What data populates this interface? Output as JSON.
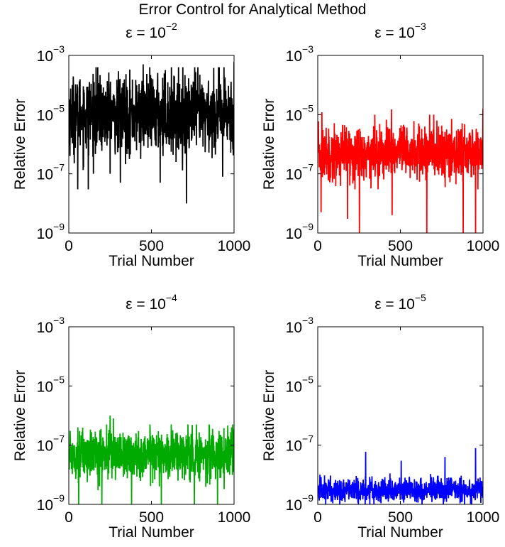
{
  "figure": {
    "title": "Error Control for Analytical Method"
  },
  "chart_data": [
    {
      "type": "line",
      "title_prefix": "ε = 10",
      "title_exp": "−2",
      "xlabel": "Trial Number",
      "ylabel": "Relative Error",
      "xlim": [
        0,
        1000
      ],
      "ylim": [
        1e-09,
        0.001
      ],
      "yscale": "log",
      "xticks": [
        "0",
        "500",
        "1000"
      ],
      "yticks": [
        {
          "base": "10",
          "exp": "−3"
        },
        {
          "base": "10",
          "exp": "−5"
        },
        {
          "base": "10",
          "exp": "−7"
        },
        {
          "base": "10",
          "exp": "−9"
        }
      ],
      "grid": false,
      "color": "#000000",
      "series": [
        {
          "x_start": 1,
          "x_step": 1,
          "n": 1000,
          "median": 1e-05,
          "typical_max": 0.0004,
          "typical_min": 1e-07,
          "spikes_down": [
            [
              54,
              3e-08
            ],
            [
              118,
              3e-08
            ],
            [
              312,
              5e-08
            ],
            [
              553,
              5e-08
            ],
            [
              712,
              1e-08
            ],
            [
              931,
              8e-08
            ]
          ],
          "spikes_up": [
            [
              450,
              0.0005
            ],
            [
              762,
              0.0004
            ],
            [
              1000,
              0.0006
            ]
          ]
        }
      ]
    },
    {
      "type": "line",
      "title_prefix": "ε = 10",
      "title_exp": "−3",
      "xlabel": "Trial Number",
      "ylabel": "Relative Error",
      "xlim": [
        0,
        1000
      ],
      "ylim": [
        1e-09,
        0.001
      ],
      "yscale": "log",
      "xticks": [
        "0",
        "500",
        "1000"
      ],
      "yticks": [
        {
          "base": "10",
          "exp": "−3"
        },
        {
          "base": "10",
          "exp": "−5"
        },
        {
          "base": "10",
          "exp": "−7"
        },
        {
          "base": "10",
          "exp": "−9"
        }
      ],
      "grid": false,
      "color": "#ff0000",
      "series": [
        {
          "x_start": 1,
          "x_step": 1,
          "n": 1000,
          "median": 5e-07,
          "typical_max": 1e-05,
          "typical_min": 3e-08,
          "spikes_down": [
            [
              20,
              5e-09
            ],
            [
              180,
              3e-09
            ],
            [
              252,
              1e-09
            ],
            [
              450,
              4e-09
            ],
            [
              660,
              1e-09
            ],
            [
              880,
              1e-09
            ],
            [
              955,
              1e-09
            ],
            [
              1000,
              2e-09
            ]
          ],
          "spikes_up": [
            [
              25,
              1.2e-05
            ],
            [
              446,
              1.5e-05
            ],
            [
              702,
              1e-05
            ],
            [
              1000,
              1.6e-05
            ]
          ]
        }
      ]
    },
    {
      "type": "line",
      "title_prefix": "ε = 10",
      "title_exp": "−4",
      "xlabel": "Trial Number",
      "ylabel": "Relative Error",
      "xlim": [
        0,
        1000
      ],
      "ylim": [
        1e-09,
        0.001
      ],
      "yscale": "log",
      "xticks": [
        "0",
        "500",
        "1000"
      ],
      "yticks": [
        {
          "base": "10",
          "exp": "−3"
        },
        {
          "base": "10",
          "exp": "−5"
        },
        {
          "base": "10",
          "exp": "−7"
        },
        {
          "base": "10",
          "exp": "−9"
        }
      ],
      "grid": false,
      "color": "#00aa00",
      "series": [
        {
          "x_start": 1,
          "x_step": 1,
          "n": 1000,
          "median": 5e-08,
          "typical_max": 5e-07,
          "typical_min": 3e-09,
          "spikes_down": [
            [
              60,
              1e-09
            ],
            [
              200,
              1e-09
            ],
            [
              380,
              1e-09
            ],
            [
              560,
              1e-09
            ],
            [
              760,
              1e-09
            ],
            [
              900,
              1e-09
            ]
          ],
          "spikes_up": [
            [
              250,
              1e-06
            ],
            [
              270,
              8e-07
            ],
            [
              620,
              5e-07
            ],
            [
              988,
              4e-07
            ]
          ]
        }
      ]
    },
    {
      "type": "line",
      "title_prefix": "ε = 10",
      "title_exp": "−5",
      "xlabel": "Trial Number",
      "ylabel": "Relative Error",
      "xlim": [
        0,
        1000
      ],
      "ylim": [
        1e-09,
        0.001
      ],
      "yscale": "log",
      "xticks": [
        "0",
        "500",
        "1000"
      ],
      "yticks": [
        {
          "base": "10",
          "exp": "−3"
        },
        {
          "base": "10",
          "exp": "−5"
        },
        {
          "base": "10",
          "exp": "−7"
        },
        {
          "base": "10",
          "exp": "−9"
        }
      ],
      "grid": false,
      "color": "#0000ff",
      "series": [
        {
          "x_start": 1,
          "x_step": 1,
          "n": 1000,
          "median": 3e-09,
          "typical_max": 1.5e-08,
          "typical_min": 1e-09,
          "spikes_down": [],
          "spikes_up": [
            [
              290,
              6e-08
            ],
            [
              505,
              3e-08
            ],
            [
              770,
              4e-08
            ],
            [
              955,
              8e-08
            ]
          ]
        }
      ]
    }
  ]
}
